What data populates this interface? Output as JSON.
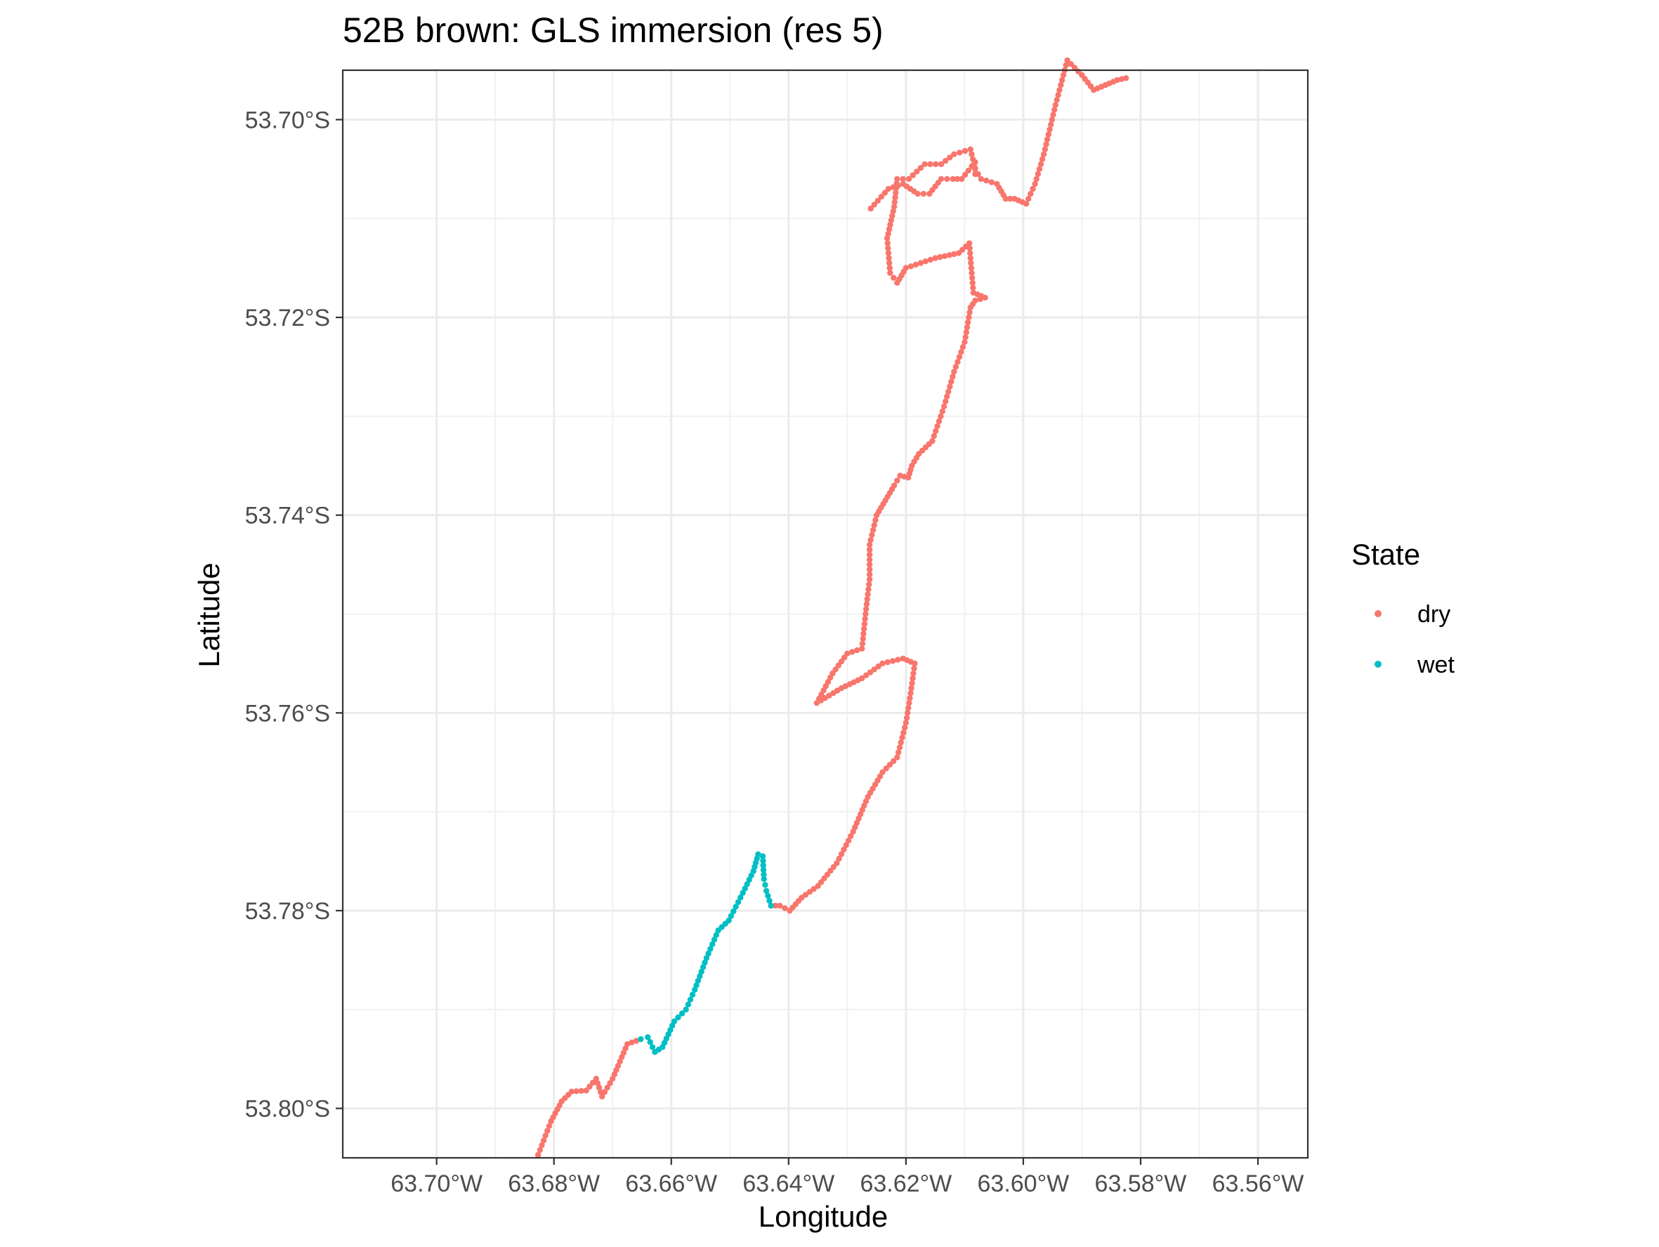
{
  "chart_data": {
    "type": "scatter",
    "title": "52B brown: GLS immersion (res 5)",
    "xlabel": "Longitude",
    "ylabel": "Latitude",
    "xlim": [
      -63.716,
      -63.5515
    ],
    "ylim": [
      -53.805,
      -53.695
    ],
    "grid": true,
    "x_ticks": [
      {
        "value": -63.7,
        "label": "63.70°W"
      },
      {
        "value": -63.68,
        "label": "63.68°W"
      },
      {
        "value": -63.66,
        "label": "63.66°W"
      },
      {
        "value": -63.64,
        "label": "63.64°W"
      },
      {
        "value": -63.62,
        "label": "63.62°W"
      },
      {
        "value": -63.6,
        "label": "63.60°W"
      },
      {
        "value": -63.58,
        "label": "63.58°W"
      },
      {
        "value": -63.56,
        "label": "63.56°W"
      }
    ],
    "y_ticks": [
      {
        "value": -53.7,
        "label": "53.70°S"
      },
      {
        "value": -53.72,
        "label": "53.72°S"
      },
      {
        "value": -53.74,
        "label": "53.74°S"
      },
      {
        "value": -53.76,
        "label": "53.76°S"
      },
      {
        "value": -53.78,
        "label": "53.78°S"
      },
      {
        "value": -53.8,
        "label": "53.80°S"
      }
    ],
    "legend": {
      "title": "State",
      "position": "right"
    },
    "series": [
      {
        "name": "dry",
        "color": "#F8766D",
        "points": [
          [
            -63.6827,
            -53.8047
          ],
          [
            -63.6805,
            -53.8013
          ],
          [
            -63.6787,
            -53.7993
          ],
          [
            -63.677,
            -53.7983
          ],
          [
            -63.6745,
            -53.7982
          ],
          [
            -63.6728,
            -53.797
          ],
          [
            -63.6718,
            -53.7988
          ],
          [
            -63.67,
            -53.797
          ],
          [
            -63.6675,
            -53.7935
          ],
          [
            -63.6652,
            -53.793
          ],
          [
            -63.643,
            -53.7795
          ],
          [
            -63.6415,
            -53.7795
          ],
          [
            -63.6398,
            -53.78
          ],
          [
            -63.6378,
            -53.7787
          ],
          [
            -63.635,
            -53.7775
          ],
          [
            -63.6318,
            -53.7752
          ],
          [
            -63.629,
            -53.772
          ],
          [
            -63.6265,
            -53.7685
          ],
          [
            -63.624,
            -53.766
          ],
          [
            -63.6215,
            -53.7645
          ],
          [
            -63.62,
            -53.761
          ],
          [
            -63.6192,
            -53.758
          ],
          [
            -63.6185,
            -53.755
          ],
          [
            -63.6205,
            -53.7545
          ],
          [
            -63.624,
            -53.755
          ],
          [
            -63.6275,
            -53.7565
          ],
          [
            -63.631,
            -53.7575
          ],
          [
            -63.6338,
            -53.7585
          ],
          [
            -63.6352,
            -53.759
          ],
          [
            -63.6325,
            -53.756
          ],
          [
            -63.63,
            -53.754
          ],
          [
            -63.6275,
            -53.7535
          ],
          [
            -63.6268,
            -53.7495
          ],
          [
            -63.6262,
            -53.7465
          ],
          [
            -63.6262,
            -53.743
          ],
          [
            -63.625,
            -53.74
          ],
          [
            -63.6235,
            -53.7385
          ],
          [
            -63.622,
            -53.737
          ],
          [
            -63.621,
            -53.736
          ],
          [
            -63.6196,
            -53.7362
          ],
          [
            -63.619,
            -53.735
          ],
          [
            -63.6178,
            -53.7338
          ],
          [
            -63.6155,
            -53.7325
          ],
          [
            -63.6135,
            -53.729
          ],
          [
            -63.6118,
            -53.7255
          ],
          [
            -63.61,
            -53.7225
          ],
          [
            -63.609,
            -53.719
          ],
          [
            -63.6082,
            -53.7183
          ],
          [
            -63.6065,
            -53.718
          ],
          [
            -63.6085,
            -53.7175
          ],
          [
            -63.609,
            -53.714
          ],
          [
            -63.6092,
            -53.7125
          ],
          [
            -63.611,
            -53.7135
          ],
          [
            -63.615,
            -53.714
          ],
          [
            -63.62,
            -53.715
          ],
          [
            -63.6215,
            -53.7165
          ],
          [
            -63.6227,
            -53.7155
          ],
          [
            -63.6232,
            -53.712
          ],
          [
            -63.622,
            -53.7088
          ],
          [
            -63.6215,
            -53.706
          ],
          [
            -63.6195,
            -53.706
          ],
          [
            -63.6168,
            -53.7045
          ],
          [
            -63.614,
            -53.7045
          ],
          [
            -63.6118,
            -53.7035
          ],
          [
            -63.609,
            -53.703
          ],
          [
            -63.6082,
            -53.705
          ],
          [
            -63.6072,
            -53.706
          ],
          [
            -63.6045,
            -53.7065
          ],
          [
            -63.603,
            -53.708
          ],
          [
            -63.6015,
            -53.708
          ],
          [
            -63.5995,
            -53.7085
          ],
          [
            -63.598,
            -53.7065
          ],
          [
            -63.5965,
            -53.7035
          ],
          [
            -63.5945,
            -53.6985
          ],
          [
            -63.5925,
            -53.694
          ],
          [
            -63.59,
            -53.6955
          ],
          [
            -63.588,
            -53.697
          ],
          [
            -63.586,
            -53.6965
          ],
          [
            -63.584,
            -53.696
          ],
          [
            -63.5825,
            -53.6958
          ],
          [
            -63.5815,
            -53.6962
          ],
          [
            -63.626,
            -53.709
          ],
          [
            -63.623,
            -53.707
          ],
          [
            -63.6205,
            -53.7065
          ],
          [
            -63.618,
            -53.7075
          ],
          [
            -63.616,
            -53.7075
          ],
          [
            -63.614,
            -53.706
          ],
          [
            -63.612,
            -53.706
          ],
          [
            -63.6105,
            -53.706
          ],
          [
            -63.6082,
            -53.7043
          ],
          [
            -63.6082,
            -53.7055
          ]
        ]
      },
      {
        "name": "wet",
        "color": "#00BFC4",
        "points": [
          [
            -63.6652,
            -53.793
          ],
          [
            -63.664,
            -53.7928
          ],
          [
            -63.6628,
            -53.7943
          ],
          [
            -63.6615,
            -53.7938
          ],
          [
            -63.6595,
            -53.7912
          ],
          [
            -63.6575,
            -53.79
          ],
          [
            -63.656,
            -53.788
          ],
          [
            -63.654,
            -53.7848
          ],
          [
            -63.652,
            -53.782
          ],
          [
            -63.6502,
            -53.781
          ],
          [
            -63.6478,
            -53.7782
          ],
          [
            -63.646,
            -53.776
          ],
          [
            -63.6452,
            -53.7743
          ],
          [
            -63.6444,
            -53.7745
          ],
          [
            -63.6442,
            -53.7768
          ],
          [
            -63.6438,
            -53.778
          ],
          [
            -63.643,
            -53.7795
          ]
        ]
      }
    ]
  }
}
